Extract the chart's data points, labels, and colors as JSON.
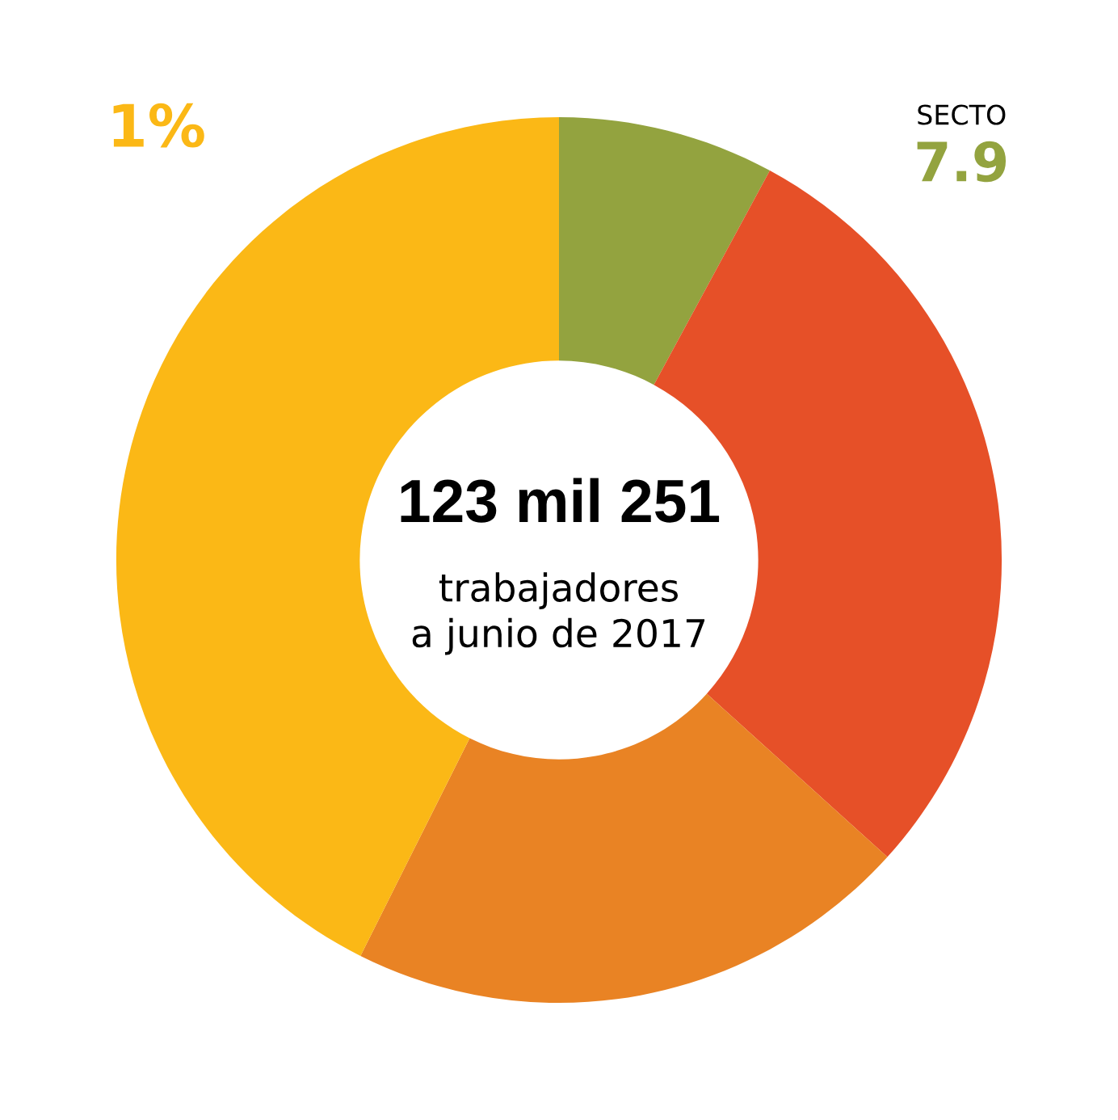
{
  "chart_data": {
    "type": "donut",
    "categories": [
      null,
      null,
      null,
      null
    ],
    "values": [
      7.9,
      28.8,
      20.7,
      42.6
    ],
    "colors": [
      "#93a33f",
      "#e65028",
      "#e98324",
      "#fbb816"
    ],
    "annotations": [
      "123 mil 251",
      "trabajadores\na junio de 2017",
      "1%",
      "SECTO",
      "7.9"
    ],
    "legend": false
  }
}
